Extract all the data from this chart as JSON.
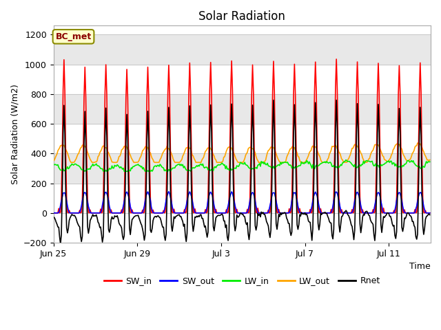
{
  "title": "Solar Radiation",
  "ylabel": "Solar Radiation (W/m2)",
  "xlabel": "Time",
  "ylim": [
    -200,
    1260
  ],
  "yticks": [
    -200,
    0,
    200,
    400,
    600,
    800,
    1000,
    1200
  ],
  "n_days": 18,
  "hours_per_day": 24,
  "label_box_text": "BC_met",
  "series_colors": {
    "SW_in": "#FF0000",
    "SW_out": "#0000FF",
    "LW_in": "#00EE00",
    "LW_out": "#FFA500",
    "Rnet": "#000000"
  },
  "xtick_labels": [
    "Jun 25",
    "Jun 29",
    "Jul 3",
    "Jul 7",
    "Jul 11"
  ],
  "xtick_positions": [
    0,
    4,
    8,
    12,
    16
  ],
  "background_color": "#FFFFFF",
  "band_color": "#E8E8E8",
  "band_ranges": [
    [
      200,
      400
    ],
    [
      600,
      800
    ],
    [
      1000,
      1200
    ]
  ]
}
